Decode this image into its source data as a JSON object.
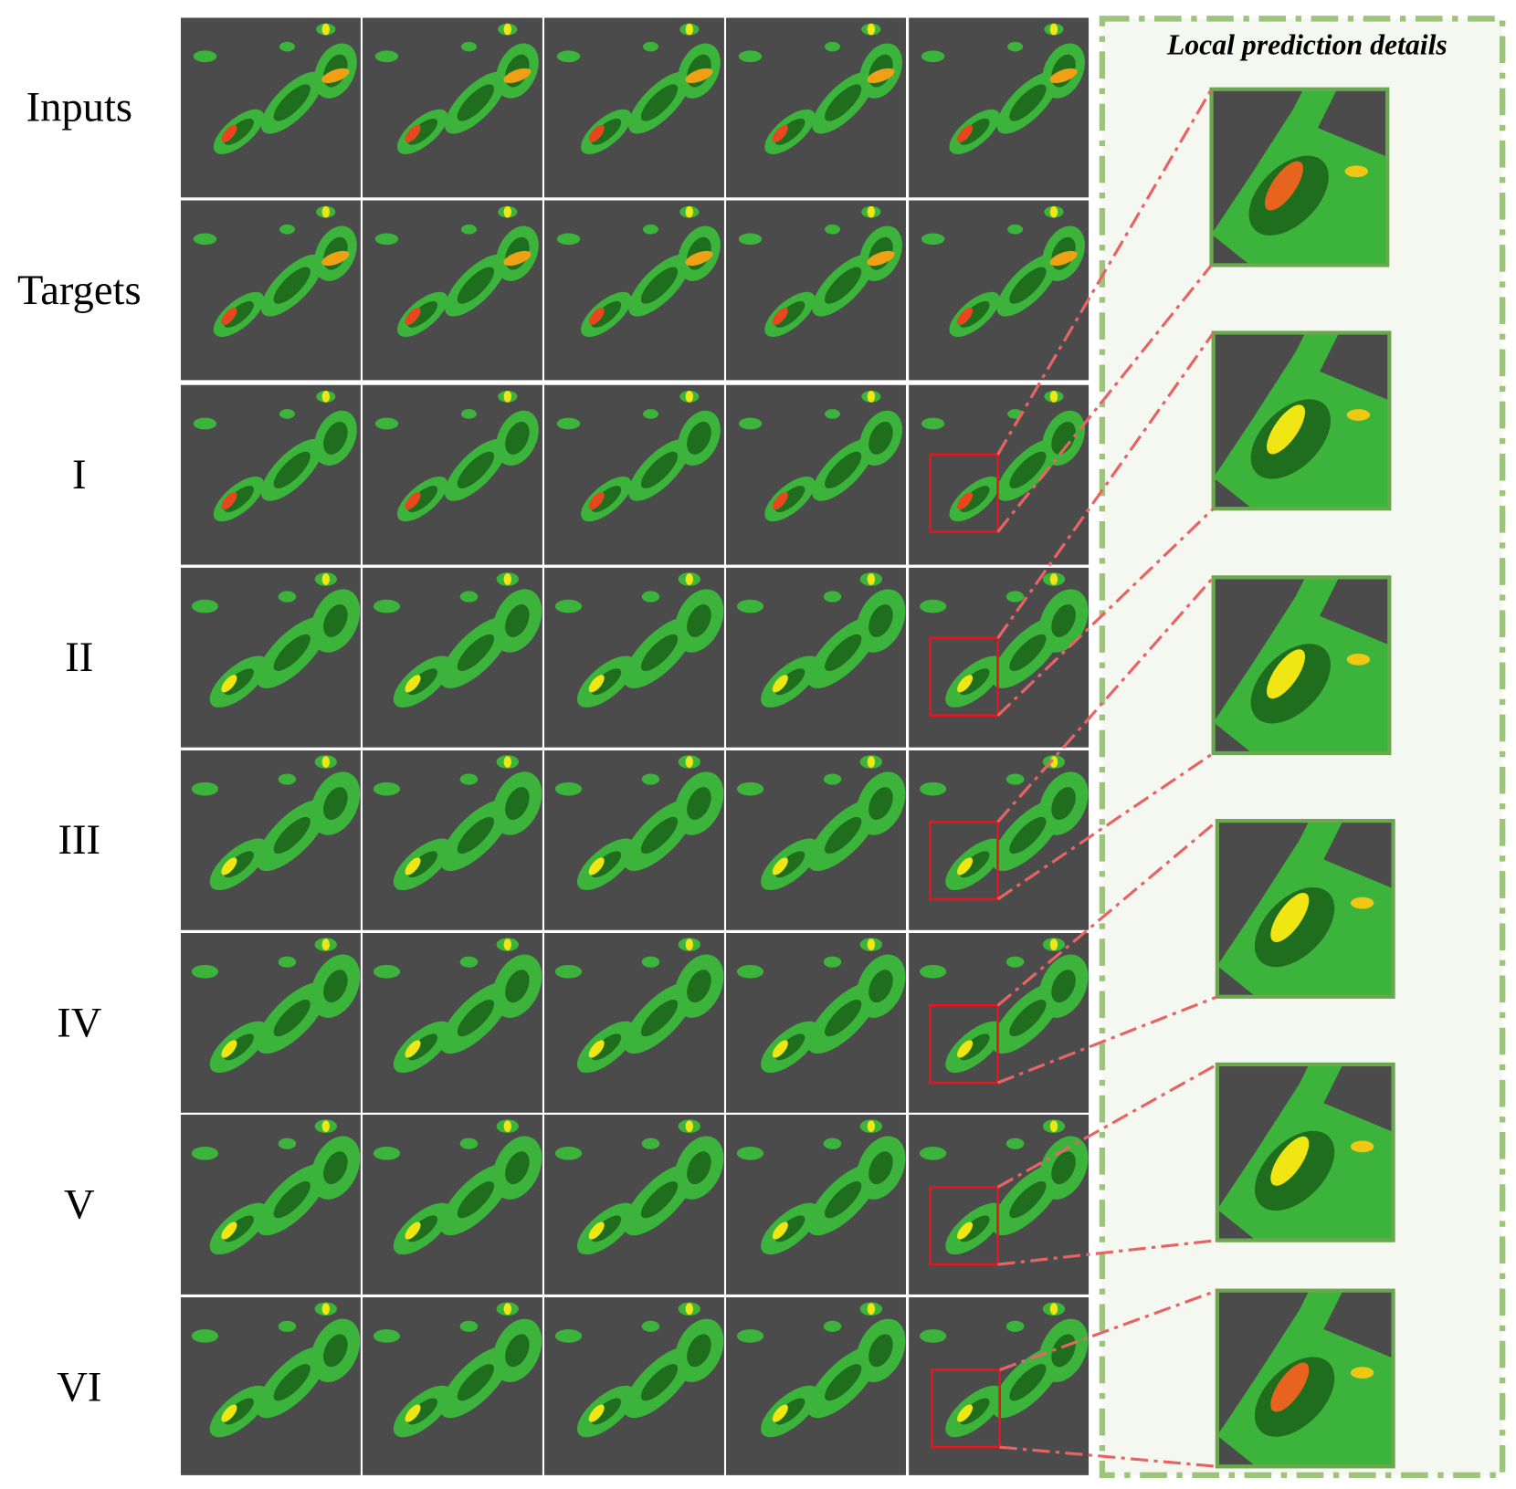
{
  "row_labels": [
    "Inputs",
    "Targets",
    "I",
    "II",
    "III",
    "IV",
    "V",
    "VI"
  ],
  "details_panel": {
    "title": "Local prediction details"
  }
}
